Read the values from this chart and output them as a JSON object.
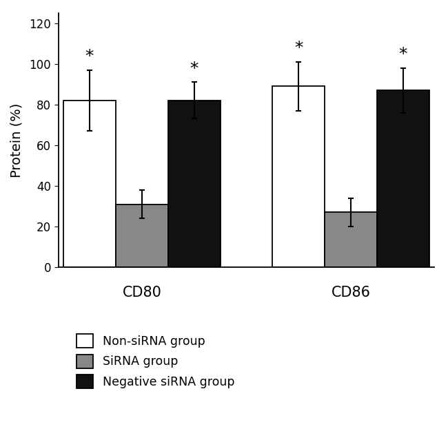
{
  "groups": [
    "CD80",
    "CD86"
  ],
  "group_centers": [
    1.5,
    4.5
  ],
  "bar_width": 0.75,
  "bar_offsets": [
    -0.75,
    0.0,
    0.75
  ],
  "values": {
    "non_sirna": [
      82,
      89
    ],
    "sirna": [
      31,
      27
    ],
    "negative": [
      82,
      87
    ]
  },
  "errors": {
    "non_sirna": [
      15,
      12
    ],
    "sirna": [
      7,
      7
    ],
    "negative": [
      9,
      11
    ]
  },
  "colors": {
    "non_sirna": "#ffffff",
    "sirna": "#888888",
    "negative": "#111111"
  },
  "ylabel": "Protein (%)",
  "ylim": [
    0,
    125
  ],
  "yticks": [
    0,
    20,
    40,
    60,
    80,
    100,
    120
  ],
  "legend_labels": [
    "Non-siRNA group",
    "SiRNA group",
    "Negative siRNA group"
  ],
  "figsize": [
    6.5,
    6.26
  ],
  "dpi": 100
}
